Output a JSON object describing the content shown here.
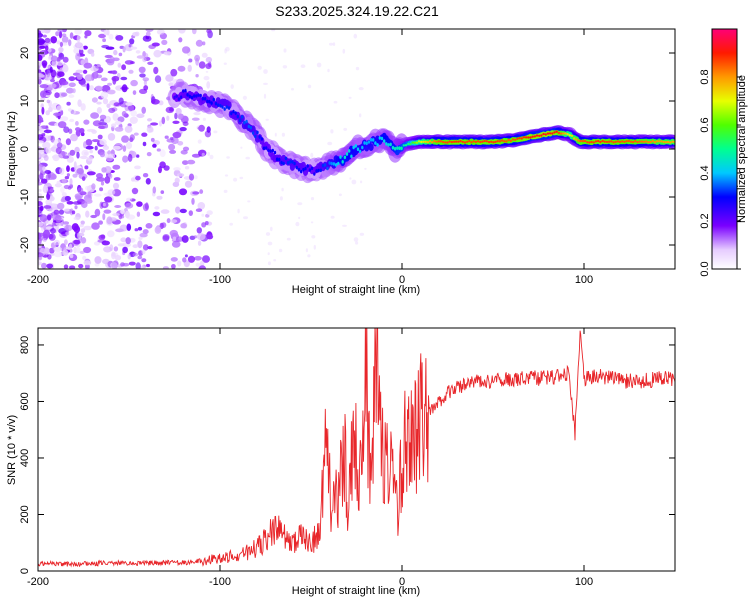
{
  "page": {
    "title": "S233.2025.324.19.22.C21"
  },
  "chart_data": [
    {
      "type": "heatmap",
      "title": "S233.2025.324.19.22.C21",
      "xlabel": "Height of straight line (km)",
      "ylabel": "Frequency (Hz)",
      "xlim": [
        -200,
        150
      ],
      "ylim": [
        -25,
        25
      ],
      "xticks": [
        -200,
        -100,
        0,
        100
      ],
      "yticks": [
        -20,
        -10,
        0,
        10,
        20
      ],
      "colorbar_label": "Normalized spectral amplitude",
      "colorbar_range": [
        0,
        1
      ],
      "colorbar_ticks": [
        0.0,
        0.2,
        0.4,
        0.6,
        0.8
      ],
      "colorbar_tick_labels": [
        "0.0",
        "0.2",
        "0.4",
        "0.6",
        "0.8"
      ],
      "colormap": "rainbow",
      "ridge": [
        {
          "x": -125,
          "y": 11,
          "v": 0.25
        },
        {
          "x": -118,
          "y": 11.5,
          "v": 0.3
        },
        {
          "x": -112,
          "y": 10.5,
          "v": 0.28
        },
        {
          "x": -105,
          "y": 10,
          "v": 0.3
        },
        {
          "x": -97,
          "y": 9,
          "v": 0.32
        },
        {
          "x": -92,
          "y": 7.5,
          "v": 0.3
        },
        {
          "x": -85,
          "y": 5,
          "v": 0.35
        },
        {
          "x": -80,
          "y": 3,
          "v": 0.32
        },
        {
          "x": -74,
          "y": 0,
          "v": 0.28
        },
        {
          "x": -68,
          "y": -2,
          "v": 0.3
        },
        {
          "x": -62,
          "y": -3,
          "v": 0.32
        },
        {
          "x": -55,
          "y": -4,
          "v": 0.3
        },
        {
          "x": -48,
          "y": -4.5,
          "v": 0.28
        },
        {
          "x": -40,
          "y": -3.5,
          "v": 0.35
        },
        {
          "x": -32,
          "y": -2,
          "v": 0.45
        },
        {
          "x": -25,
          "y": 0,
          "v": 0.4
        },
        {
          "x": -18,
          "y": 1,
          "v": 0.38
        },
        {
          "x": -10,
          "y": 2,
          "v": 0.42
        },
        {
          "x": -4,
          "y": 0,
          "v": 0.45
        },
        {
          "x": 3,
          "y": 1,
          "v": 0.5
        },
        {
          "x": 10,
          "y": 1.5,
          "v": 0.7
        },
        {
          "x": 20,
          "y": 1.5,
          "v": 0.85
        },
        {
          "x": 30,
          "y": 1.5,
          "v": 0.88
        },
        {
          "x": 40,
          "y": 1.5,
          "v": 0.86
        },
        {
          "x": 50,
          "y": 1.5,
          "v": 0.88
        },
        {
          "x": 60,
          "y": 1.8,
          "v": 0.85
        },
        {
          "x": 70,
          "y": 2.5,
          "v": 0.9
        },
        {
          "x": 78,
          "y": 3,
          "v": 0.92
        },
        {
          "x": 85,
          "y": 3.5,
          "v": 0.9
        },
        {
          "x": 92,
          "y": 3,
          "v": 0.7
        },
        {
          "x": 98,
          "y": 1.5,
          "v": 0.85
        },
        {
          "x": 108,
          "y": 1.5,
          "v": 0.88
        },
        {
          "x": 118,
          "y": 1.5,
          "v": 0.86
        },
        {
          "x": 128,
          "y": 1.5,
          "v": 0.85
        },
        {
          "x": 140,
          "y": 1.5,
          "v": 0.8
        },
        {
          "x": 150,
          "y": 1.5,
          "v": 0.78
        }
      ]
    },
    {
      "type": "line",
      "xlabel": "Height of straight line (km)",
      "ylabel": "SNR (10 * v/v)",
      "xlim": [
        -200,
        150
      ],
      "ylim": [
        0,
        860
      ],
      "xticks": [
        -200,
        -100,
        0,
        100
      ],
      "yticks": [
        0,
        200,
        400,
        600,
        800
      ],
      "series": [
        {
          "name": "SNR",
          "color": "#e8262a",
          "x": [
            -200,
            -180,
            -160,
            -140,
            -120,
            -110,
            -100,
            -90,
            -80,
            -75,
            -70,
            -65,
            -60,
            -55,
            -50,
            -45,
            -42,
            -38,
            -35,
            -32,
            -30,
            -28,
            -25,
            -22,
            -20,
            -18,
            -16,
            -14,
            -12,
            -10,
            -8,
            -5,
            -2,
            0,
            5,
            10,
            15,
            20,
            25,
            30,
            40,
            50,
            60,
            70,
            80,
            88,
            92,
            95,
            98,
            100,
            110,
            120,
            130,
            140,
            150
          ],
          "y": [
            25,
            25,
            28,
            28,
            30,
            35,
            45,
            55,
            80,
            110,
            150,
            130,
            90,
            120,
            100,
            150,
            400,
            200,
            300,
            500,
            250,
            350,
            450,
            300,
            850,
            400,
            480,
            750,
            500,
            350,
            400,
            300,
            200,
            400,
            480,
            520,
            560,
            600,
            630,
            650,
            670,
            675,
            680,
            680,
            685,
            690,
            700,
            480,
            850,
            680,
            690,
            675,
            670,
            680,
            680
          ]
        }
      ]
    }
  ]
}
